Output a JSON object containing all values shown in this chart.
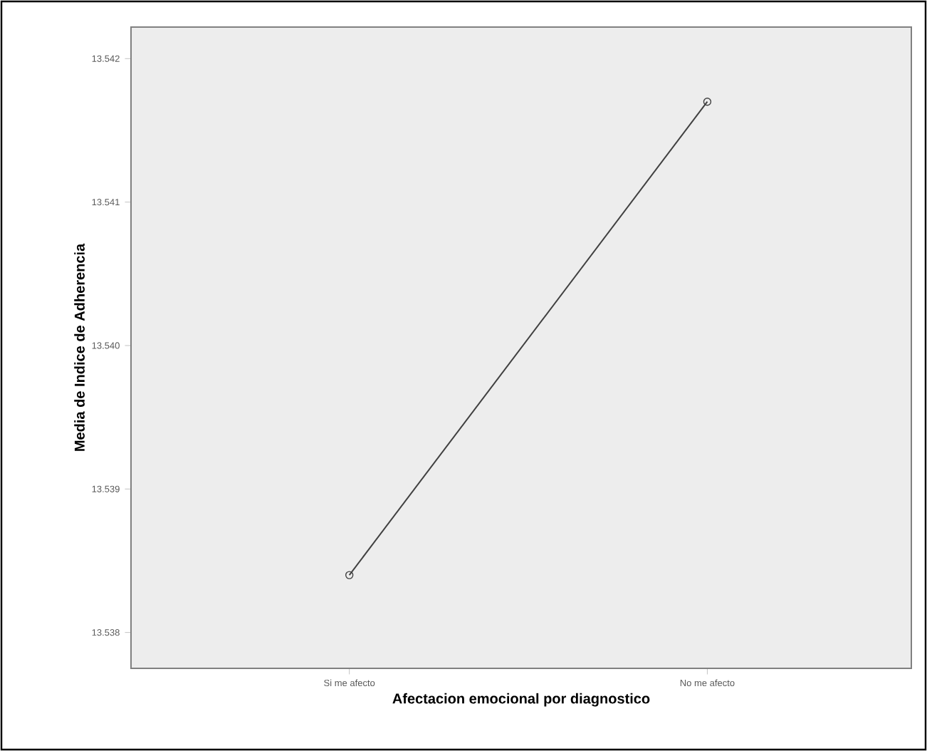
{
  "chart_data": {
    "type": "line",
    "xlabel": "Afectacion emocional por diagnostico",
    "ylabel": "Media de Indice de Adherencia",
    "categories": [
      "Si me afecto",
      "No me afecto"
    ],
    "series": [
      {
        "color": "#404040",
        "values": [
          13.5384,
          13.5417
        ]
      }
    ],
    "ylim": [
      13.53775,
      13.54222
    ],
    "yticks": [
      13.538,
      13.539,
      {
        "value": 13.54,
        "label": "13.540"
      },
      13.541,
      13.542
    ],
    "grid": false,
    "marker": "circle",
    "line_style": "solid"
  }
}
